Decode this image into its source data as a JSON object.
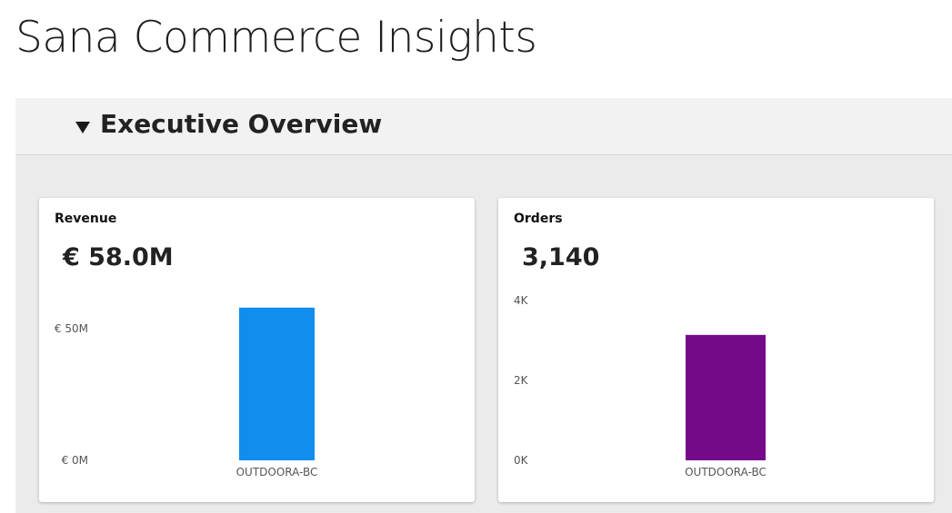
{
  "page": {
    "title": "Sana Commerce Insights"
  },
  "section": {
    "title": "Executive Overview",
    "expanded": true,
    "toggle_icon": "triangle-down-icon"
  },
  "cards": [
    {
      "title": "Revenue",
      "value": "€ 58.0M"
    },
    {
      "title": "Orders",
      "value": "3,140"
    }
  ],
  "chart_data": [
    {
      "type": "bar",
      "title": "Revenue",
      "categories": [
        "OUTDOORA-BC"
      ],
      "values": [
        58000000
      ],
      "ylim": [
        0,
        60000000
      ],
      "yticks": [
        {
          "value": 0,
          "label": "€ 0M"
        },
        {
          "value": 50000000,
          "label": "€ 50M"
        }
      ],
      "color": "#118DEE",
      "grid": false
    },
    {
      "type": "bar",
      "title": "Orders",
      "categories": [
        "OUTDOORA-BC"
      ],
      "values": [
        3140
      ],
      "ylim": [
        0,
        4000
      ],
      "yticks": [
        {
          "value": 0,
          "label": "0K"
        },
        {
          "value": 2000,
          "label": "2K"
        },
        {
          "value": 4000,
          "label": "4K"
        }
      ],
      "color": "#740A8A",
      "grid": false
    }
  ]
}
